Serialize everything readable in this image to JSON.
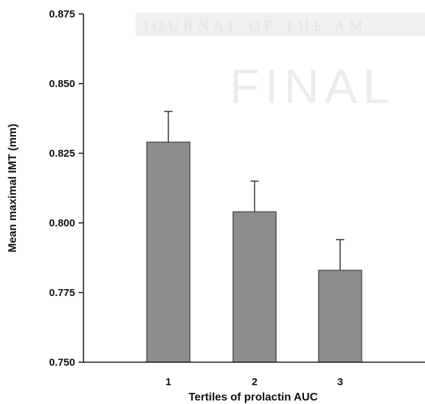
{
  "watermark": {
    "line1": "JOURNAL OF THE AM",
    "line2": "FINAL"
  },
  "chart_data": {
    "type": "bar",
    "categories": [
      "1",
      "2",
      "3"
    ],
    "values": [
      0.829,
      0.804,
      0.783
    ],
    "error_upper": [
      0.84,
      0.815,
      0.794
    ],
    "xlabel": "Tertiles of prolactin AUC",
    "ylabel": "Mean maximal IMT (mm)",
    "ylim": [
      0.75,
      0.875
    ],
    "yticks": [
      "0.750",
      "0.775",
      "0.800",
      "0.825",
      "0.850",
      "0.875"
    ],
    "bar_color": "#8c8c8c",
    "grid": false
  }
}
